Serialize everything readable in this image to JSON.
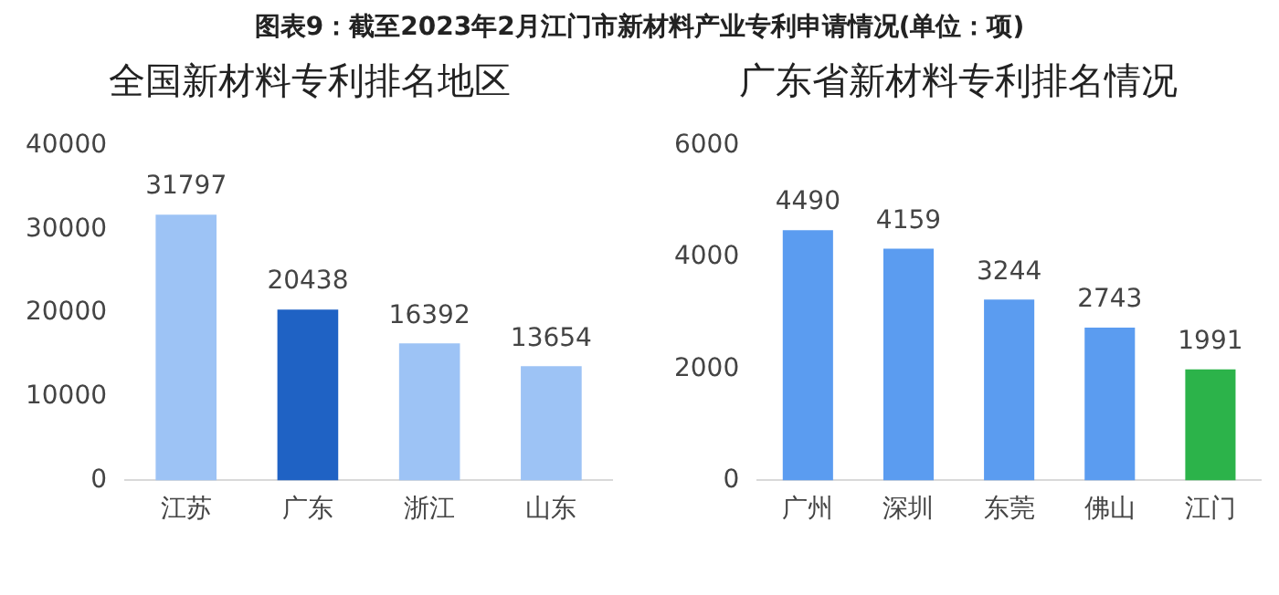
{
  "chart_data": [
    {
      "type": "other",
      "title": "图表9：截至2023年2月江门市新材料产业专利申请情况(单位：项)"
    },
    {
      "type": "bar",
      "title": "全国新材料专利排名地区",
      "categories": [
        "江苏",
        "广东",
        "浙江",
        "山东"
      ],
      "values": [
        31797,
        20438,
        16392,
        13654
      ],
      "colors": [
        "#9dc3f5",
        "#1f62c4",
        "#9dc3f5",
        "#9dc3f5"
      ],
      "ylim": [
        0,
        40000
      ],
      "yticks": [
        0,
        10000,
        20000,
        30000,
        40000
      ],
      "grid": false,
      "data_labels": true
    },
    {
      "type": "bar",
      "title": "广东省新材料专利排名情况",
      "categories": [
        "广州",
        "深圳",
        "东莞",
        "佛山",
        "江门"
      ],
      "values": [
        4490,
        4159,
        3244,
        2743,
        1991
      ],
      "colors": [
        "#5b9cf0",
        "#5b9cf0",
        "#5b9cf0",
        "#5b9cf0",
        "#2cb34a"
      ],
      "ylim": [
        0,
        6000
      ],
      "yticks": [
        0,
        2000,
        4000,
        6000
      ],
      "grid": false,
      "data_labels": true
    }
  ]
}
